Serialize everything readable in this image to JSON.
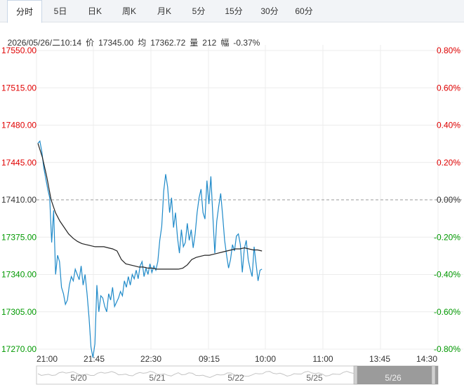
{
  "tabs": [
    {
      "label": "分时",
      "active": true
    },
    {
      "label": "5日"
    },
    {
      "label": "日K"
    },
    {
      "label": "周K"
    },
    {
      "label": "月K"
    },
    {
      "label": "5分"
    },
    {
      "label": "15分"
    },
    {
      "label": "30分"
    },
    {
      "label": "60分"
    }
  ],
  "info": {
    "datetime": "2026/05/26/二10:14",
    "price_label": "价",
    "price": "17345.00",
    "avg_label": "均",
    "avg": "17362.72",
    "volume_label": "量",
    "volume": "212",
    "change_label": "幅",
    "change": "-0.37%"
  },
  "chart_data": {
    "type": "line",
    "base_price": 17410.0,
    "ylim": [
      17270.0,
      17550.0
    ],
    "y_ticks": [
      "17550.00",
      "17515.00",
      "17480.00",
      "17445.00",
      "17410.00",
      "17375.00",
      "17340.00",
      "17305.00",
      "17270.00"
    ],
    "pct_ticks": [
      "0.80%",
      "0.60%",
      "0.40%",
      "0.20%",
      "0.00%",
      "-0.20%",
      "-0.40%",
      "-0.60%",
      "-0.80%"
    ],
    "x_ticks": [
      "21:00",
      "21:45",
      "22:30",
      "09:15",
      "10:00",
      "11:00",
      "13:45",
      "14:30"
    ],
    "colors": {
      "price": "#1f8ac9",
      "avg": "#222222",
      "up": "#e00000",
      "down": "#009900"
    },
    "series": [
      {
        "values": [
          17463,
          17465,
          17455,
          17440,
          17430,
          17420,
          17412,
          17370,
          17400,
          17340,
          17358,
          17352,
          17328,
          17322,
          17312,
          17316,
          17330,
          17338,
          17334,
          17345,
          17340,
          17335,
          17348,
          17330,
          17340,
          17322,
          17300,
          17272,
          17262,
          17275,
          17330,
          17305,
          17320,
          17318,
          17310,
          17305,
          17322,
          17316,
          17328,
          17310,
          17314,
          17318,
          17324,
          17320,
          17334,
          17328,
          17338,
          17330,
          17340,
          17336,
          17344,
          17336,
          17348,
          17352,
          17338,
          17346,
          17340,
          17350,
          17342,
          17348,
          17344,
          17352,
          17372,
          17385,
          17418,
          17434,
          17422,
          17398,
          17412,
          17384,
          17398,
          17375,
          17360,
          17382,
          17366,
          17370,
          17388,
          17372,
          17382,
          17365,
          17378,
          17398,
          17412,
          17420,
          17398,
          17392,
          17428,
          17406,
          17432,
          17395,
          17360,
          17390,
          17404,
          17416,
          17395,
          17372,
          17358,
          17346,
          17354,
          17368,
          17362,
          17376,
          17378,
          17368,
          17342,
          17364,
          17372,
          17354,
          17345,
          17338,
          17366,
          17350,
          17334,
          17344,
          17345
        ]
      },
      {
        "values": [
          17463,
          17450,
          17432,
          17410,
          17398,
          17390,
          17384,
          17378,
          17374,
          17371,
          17369,
          17368,
          17367,
          17366,
          17366,
          17366,
          17365,
          17364,
          17362,
          17354,
          17350,
          17349,
          17348,
          17347,
          17347,
          17346,
          17346,
          17345,
          17345,
          17345,
          17345,
          17345,
          17345,
          17346,
          17349,
          17354,
          17356,
          17357,
          17358,
          17358,
          17359,
          17360,
          17361,
          17362,
          17363,
          17364,
          17364,
          17365,
          17364,
          17363,
          17363,
          17362
        ]
      }
    ],
    "navigator": {
      "labels": [
        "5/20",
        "5/21",
        "5/22",
        "5/25",
        "5/26"
      ]
    }
  }
}
